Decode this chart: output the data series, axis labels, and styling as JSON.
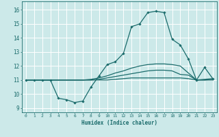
{
  "xlabel": "Humidex (Indice chaleur)",
  "xlim": [
    -0.5,
    23.5
  ],
  "ylim": [
    8.7,
    16.6
  ],
  "xticks": [
    0,
    1,
    2,
    3,
    4,
    5,
    6,
    7,
    8,
    9,
    10,
    11,
    12,
    13,
    14,
    15,
    16,
    17,
    18,
    19,
    20,
    21,
    22,
    23
  ],
  "yticks": [
    9,
    10,
    11,
    12,
    13,
    14,
    15,
    16
  ],
  "background_color": "#cce9e9",
  "grid_color": "#ffffff",
  "line_color": "#1a6b6b",
  "series": [
    {
      "y": [
        11,
        11,
        11,
        11,
        9.7,
        9.6,
        9.4,
        9.5,
        10.5,
        11.3,
        12.1,
        12.3,
        12.9,
        14.8,
        15.0,
        15.8,
        15.9,
        15.8,
        13.9,
        13.5,
        12.5,
        11.0,
        11.9,
        11.1
      ],
      "marker": "D",
      "markersize": 1.8,
      "linewidth": 0.9
    },
    {
      "y": [
        11,
        11,
        11,
        11,
        11,
        11,
        11,
        11,
        11.05,
        11.15,
        11.3,
        11.5,
        11.65,
        11.85,
        12.0,
        12.1,
        12.15,
        12.15,
        12.1,
        12.0,
        11.5,
        11.0,
        11.05,
        11.1
      ],
      "marker": null,
      "linewidth": 0.9
    },
    {
      "y": [
        11,
        11,
        11,
        11,
        11,
        11,
        11,
        11,
        11.0,
        11.05,
        11.15,
        11.25,
        11.35,
        11.45,
        11.55,
        11.65,
        11.7,
        11.7,
        11.65,
        11.4,
        11.35,
        11.0,
        11.0,
        11.05
      ],
      "marker": null,
      "linewidth": 0.9
    },
    {
      "y": [
        11,
        11,
        11,
        11,
        11,
        11,
        11,
        11,
        11.0,
        11.0,
        11.0,
        11.05,
        11.1,
        11.15,
        11.15,
        11.15,
        11.15,
        11.15,
        11.15,
        11.15,
        11.1,
        11.0,
        11.0,
        11.0
      ],
      "marker": null,
      "linewidth": 0.9
    }
  ]
}
